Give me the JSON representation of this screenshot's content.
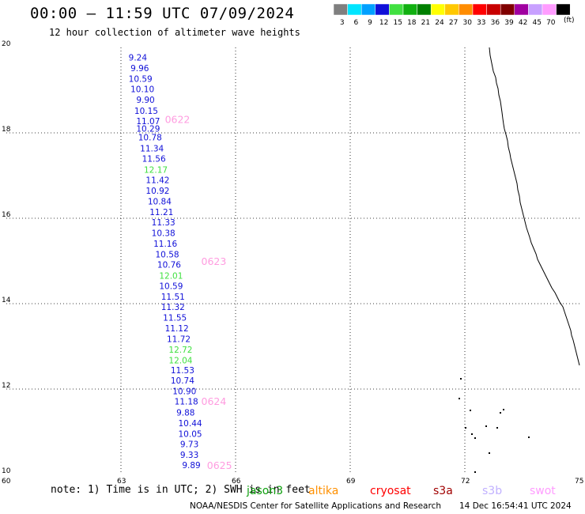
{
  "header": {
    "title": "00:00 – 11:59 UTC 07/09/2024",
    "subtitle": "12 hour collection of altimeter wave heights"
  },
  "legend": {
    "unit": "(ft)",
    "swatches": [
      {
        "label": "3",
        "color": "#7f7f7f"
      },
      {
        "label": "6",
        "color": "#00e5ff"
      },
      {
        "label": "9",
        "color": "#00a0ff"
      },
      {
        "label": "12",
        "color": "#1010d8"
      },
      {
        "label": "15",
        "color": "#40e040"
      },
      {
        "label": "18",
        "color": "#10b010"
      },
      {
        "label": "21",
        "color": "#008000"
      },
      {
        "label": "24",
        "color": "#ffff00"
      },
      {
        "label": "27",
        "color": "#ffc800"
      },
      {
        "label": "30",
        "color": "#ff8c00"
      },
      {
        "label": "33",
        "color": "#ff0000"
      },
      {
        "label": "36",
        "color": "#c80000"
      },
      {
        "label": "39",
        "color": "#800000"
      },
      {
        "label": "42",
        "color": "#a000a0"
      },
      {
        "label": "45",
        "color": "#c8a0ff"
      },
      {
        "label": "70",
        "color": "#ff9cff"
      },
      {
        "label": "",
        "color": "#000000"
      }
    ]
  },
  "map": {
    "lon_ticks": [
      "60",
      "63",
      "66",
      "69",
      "72",
      "75"
    ],
    "lat_ticks": [
      "20",
      "18",
      "16",
      "14",
      "12",
      "10"
    ],
    "lon_range": [
      60,
      75
    ],
    "lat_range": [
      10,
      20
    ]
  },
  "wave_heights": [
    {
      "lon": 63.2,
      "lat": 19.77,
      "value": "9.24",
      "color": "#1010d8"
    },
    {
      "lon": 63.25,
      "lat": 19.52,
      "value": "9.96",
      "color": "#1010d8"
    },
    {
      "lon": 63.2,
      "lat": 19.27,
      "value": "10.59",
      "color": "#1010d8"
    },
    {
      "lon": 63.25,
      "lat": 19.03,
      "value": "10.10",
      "color": "#1010d8"
    },
    {
      "lon": 63.4,
      "lat": 18.78,
      "value": "9.90",
      "color": "#1010d8"
    },
    {
      "lon": 63.35,
      "lat": 18.52,
      "value": "10.15",
      "color": "#1010d8"
    },
    {
      "lon": 63.4,
      "lat": 18.28,
      "value": "11.07",
      "color": "#1010d8"
    },
    {
      "lon": 63.4,
      "lat": 18.1,
      "value": "10.29",
      "color": "#1010d8"
    },
    {
      "lon": 63.45,
      "lat": 17.9,
      "value": "10.78",
      "color": "#1010d8"
    },
    {
      "lon": 63.5,
      "lat": 17.64,
      "value": "11.34",
      "color": "#1010d8"
    },
    {
      "lon": 63.55,
      "lat": 17.4,
      "value": "11.56",
      "color": "#1010d8"
    },
    {
      "lon": 63.6,
      "lat": 17.14,
      "value": "12.17",
      "color": "#40e040"
    },
    {
      "lon": 63.65,
      "lat": 16.9,
      "value": "11.42",
      "color": "#1010d8"
    },
    {
      "lon": 63.65,
      "lat": 16.65,
      "value": "10.92",
      "color": "#1010d8"
    },
    {
      "lon": 63.7,
      "lat": 16.4,
      "value": "10.84",
      "color": "#1010d8"
    },
    {
      "lon": 63.75,
      "lat": 16.15,
      "value": "11.21",
      "color": "#1010d8"
    },
    {
      "lon": 63.8,
      "lat": 15.91,
      "value": "11.33",
      "color": "#1010d8"
    },
    {
      "lon": 63.8,
      "lat": 15.66,
      "value": "10.38",
      "color": "#1010d8"
    },
    {
      "lon": 63.85,
      "lat": 15.41,
      "value": "11.16",
      "color": "#1010d8"
    },
    {
      "lon": 63.9,
      "lat": 15.16,
      "value": "10.58",
      "color": "#1010d8"
    },
    {
      "lon": 63.95,
      "lat": 14.92,
      "value": "10.76",
      "color": "#1010d8"
    },
    {
      "lon": 64.0,
      "lat": 14.66,
      "value": "12.01",
      "color": "#40e040"
    },
    {
      "lon": 64.0,
      "lat": 14.42,
      "value": "10.59",
      "color": "#1010d8"
    },
    {
      "lon": 64.05,
      "lat": 14.17,
      "value": "11.51",
      "color": "#1010d8"
    },
    {
      "lon": 64.05,
      "lat": 13.93,
      "value": "11.32",
      "color": "#1010d8"
    },
    {
      "lon": 64.1,
      "lat": 13.68,
      "value": "11.55",
      "color": "#1010d8"
    },
    {
      "lon": 64.15,
      "lat": 13.43,
      "value": "11.12",
      "color": "#1010d8"
    },
    {
      "lon": 64.2,
      "lat": 13.18,
      "value": "11.72",
      "color": "#1010d8"
    },
    {
      "lon": 64.25,
      "lat": 12.93,
      "value": "12.72",
      "color": "#40e040"
    },
    {
      "lon": 64.25,
      "lat": 12.68,
      "value": "12.04",
      "color": "#40e040"
    },
    {
      "lon": 64.3,
      "lat": 12.44,
      "value": "11.53",
      "color": "#1010d8"
    },
    {
      "lon": 64.3,
      "lat": 12.2,
      "value": "10.74",
      "color": "#1010d8"
    },
    {
      "lon": 64.35,
      "lat": 11.95,
      "value": "10.90",
      "color": "#1010d8"
    },
    {
      "lon": 64.4,
      "lat": 11.71,
      "value": "11.18",
      "color": "#1010d8"
    },
    {
      "lon": 64.45,
      "lat": 11.45,
      "value": "9.88",
      "color": "#1010d8"
    },
    {
      "lon": 64.5,
      "lat": 11.2,
      "value": "10.44",
      "color": "#1010d8"
    },
    {
      "lon": 64.5,
      "lat": 10.95,
      "value": "10.05",
      "color": "#1010d8"
    },
    {
      "lon": 64.55,
      "lat": 10.71,
      "value": "9.73",
      "color": "#1010d8"
    },
    {
      "lon": 64.55,
      "lat": 10.46,
      "value": "9.33",
      "color": "#1010d8"
    },
    {
      "lon": 64.6,
      "lat": 10.22,
      "value": "9.89",
      "color": "#1010d8"
    }
  ],
  "time_labels": [
    {
      "lon": 64.15,
      "lat": 18.32,
      "value": "0622",
      "color": "#ff9ce0"
    },
    {
      "lon": 65.1,
      "lat": 15.0,
      "value": "0623",
      "color": "#ff9ce0"
    },
    {
      "lon": 65.1,
      "lat": 11.72,
      "value": "0624",
      "color": "#ff9ce0"
    },
    {
      "lon": 65.25,
      "lat": 10.22,
      "value": "0625",
      "color": "#ff9ce0"
    }
  ],
  "footer": {
    "note": "note: 1) Time is in UTC; 2) SWH is in feet",
    "satellites": [
      {
        "name": "jason3",
        "color": "#10a010"
      },
      {
        "name": "altika",
        "color": "#ff9000"
      },
      {
        "name": "cryosat",
        "color": "#ff0000"
      },
      {
        "name": "s3a",
        "color": "#a00000"
      },
      {
        "name": "s3b",
        "color": "#c0b0ff"
      },
      {
        "name": "swot",
        "color": "#ff9cff"
      }
    ],
    "credit": "NOAA/NESDIS Center for Satellite Applications and Research",
    "timestamp": "14 Dec 16:54:41 UTC 2024"
  }
}
